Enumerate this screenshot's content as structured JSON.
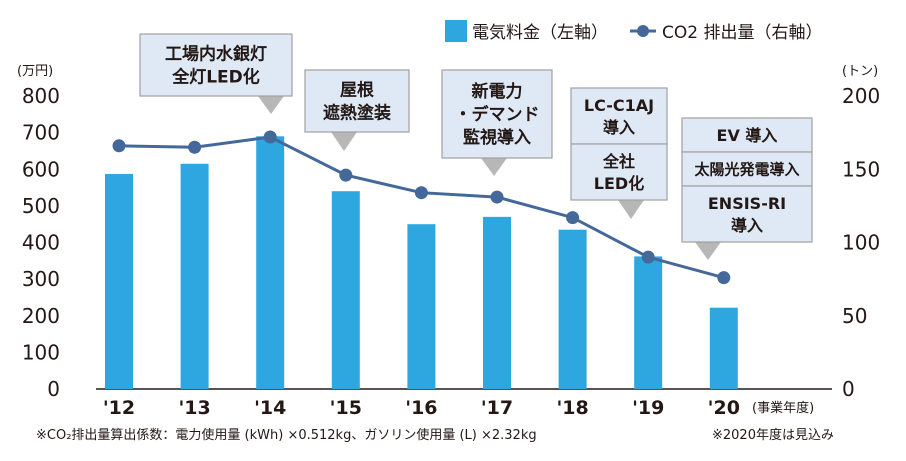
{
  "chart_data": {
    "type": "bar",
    "categories": [
      "'12",
      "'13",
      "'14",
      "'15",
      "'16",
      "'17",
      "'18",
      "'19",
      "'20"
    ],
    "x_unit": "(事業年度)",
    "series": [
      {
        "name": "電気料金（左軸）",
        "kind": "bar",
        "axis": "left",
        "values": [
          587,
          615,
          690,
          540,
          450,
          470,
          435,
          362,
          222
        ]
      },
      {
        "name": "CO2 排出量（右軸）",
        "kind": "line",
        "axis": "right",
        "values": [
          166,
          165,
          172,
          146,
          134,
          131,
          117,
          90,
          76
        ]
      }
    ],
    "left_axis": {
      "unit": "(万円)",
      "min": 0,
      "max": 800,
      "ticks": [
        0,
        100,
        200,
        300,
        400,
        500,
        600,
        700,
        800
      ]
    },
    "right_axis": {
      "unit": "(トン)",
      "min": 0,
      "max": 200,
      "ticks": [
        0,
        50,
        100,
        150,
        200
      ]
    },
    "legend_position": "top-right",
    "annotations": [
      {
        "category_index": 2,
        "lines": [
          "工場内水銀灯",
          "全灯LED化"
        ]
      },
      {
        "category_index": 3,
        "lines": [
          "屋根",
          "遮熱塗装"
        ]
      },
      {
        "category_index": 5,
        "lines": [
          "新電力",
          "・デマンド",
          "監視導入"
        ]
      },
      {
        "category_index": 6,
        "lines": [
          "LC-C1AJ",
          "導入"
        ]
      },
      {
        "category_index": 6,
        "lines": [
          "全社",
          "LED化"
        ]
      },
      {
        "category_index": 8,
        "lines": [
          "EV 導入"
        ]
      },
      {
        "category_index": 8,
        "lines": [
          "太陽光発電導入"
        ]
      },
      {
        "category_index": 8,
        "lines": [
          "ENSIS-RI",
          "導入"
        ]
      }
    ]
  },
  "footnotes": {
    "left": "※CO₂排出量算出係数：電力使用量 (kWh) ×0.512kg、ガソリン使用量 (L) ×2.32kg",
    "right": "※2020年度は見込み"
  },
  "colors": {
    "bar": "#2ea7e0",
    "line": "#44689a",
    "box_fill": "#dfe9f5",
    "box_border": "#a0a0a0",
    "arrow": "#b7b7b7",
    "axis": "#231815"
  }
}
